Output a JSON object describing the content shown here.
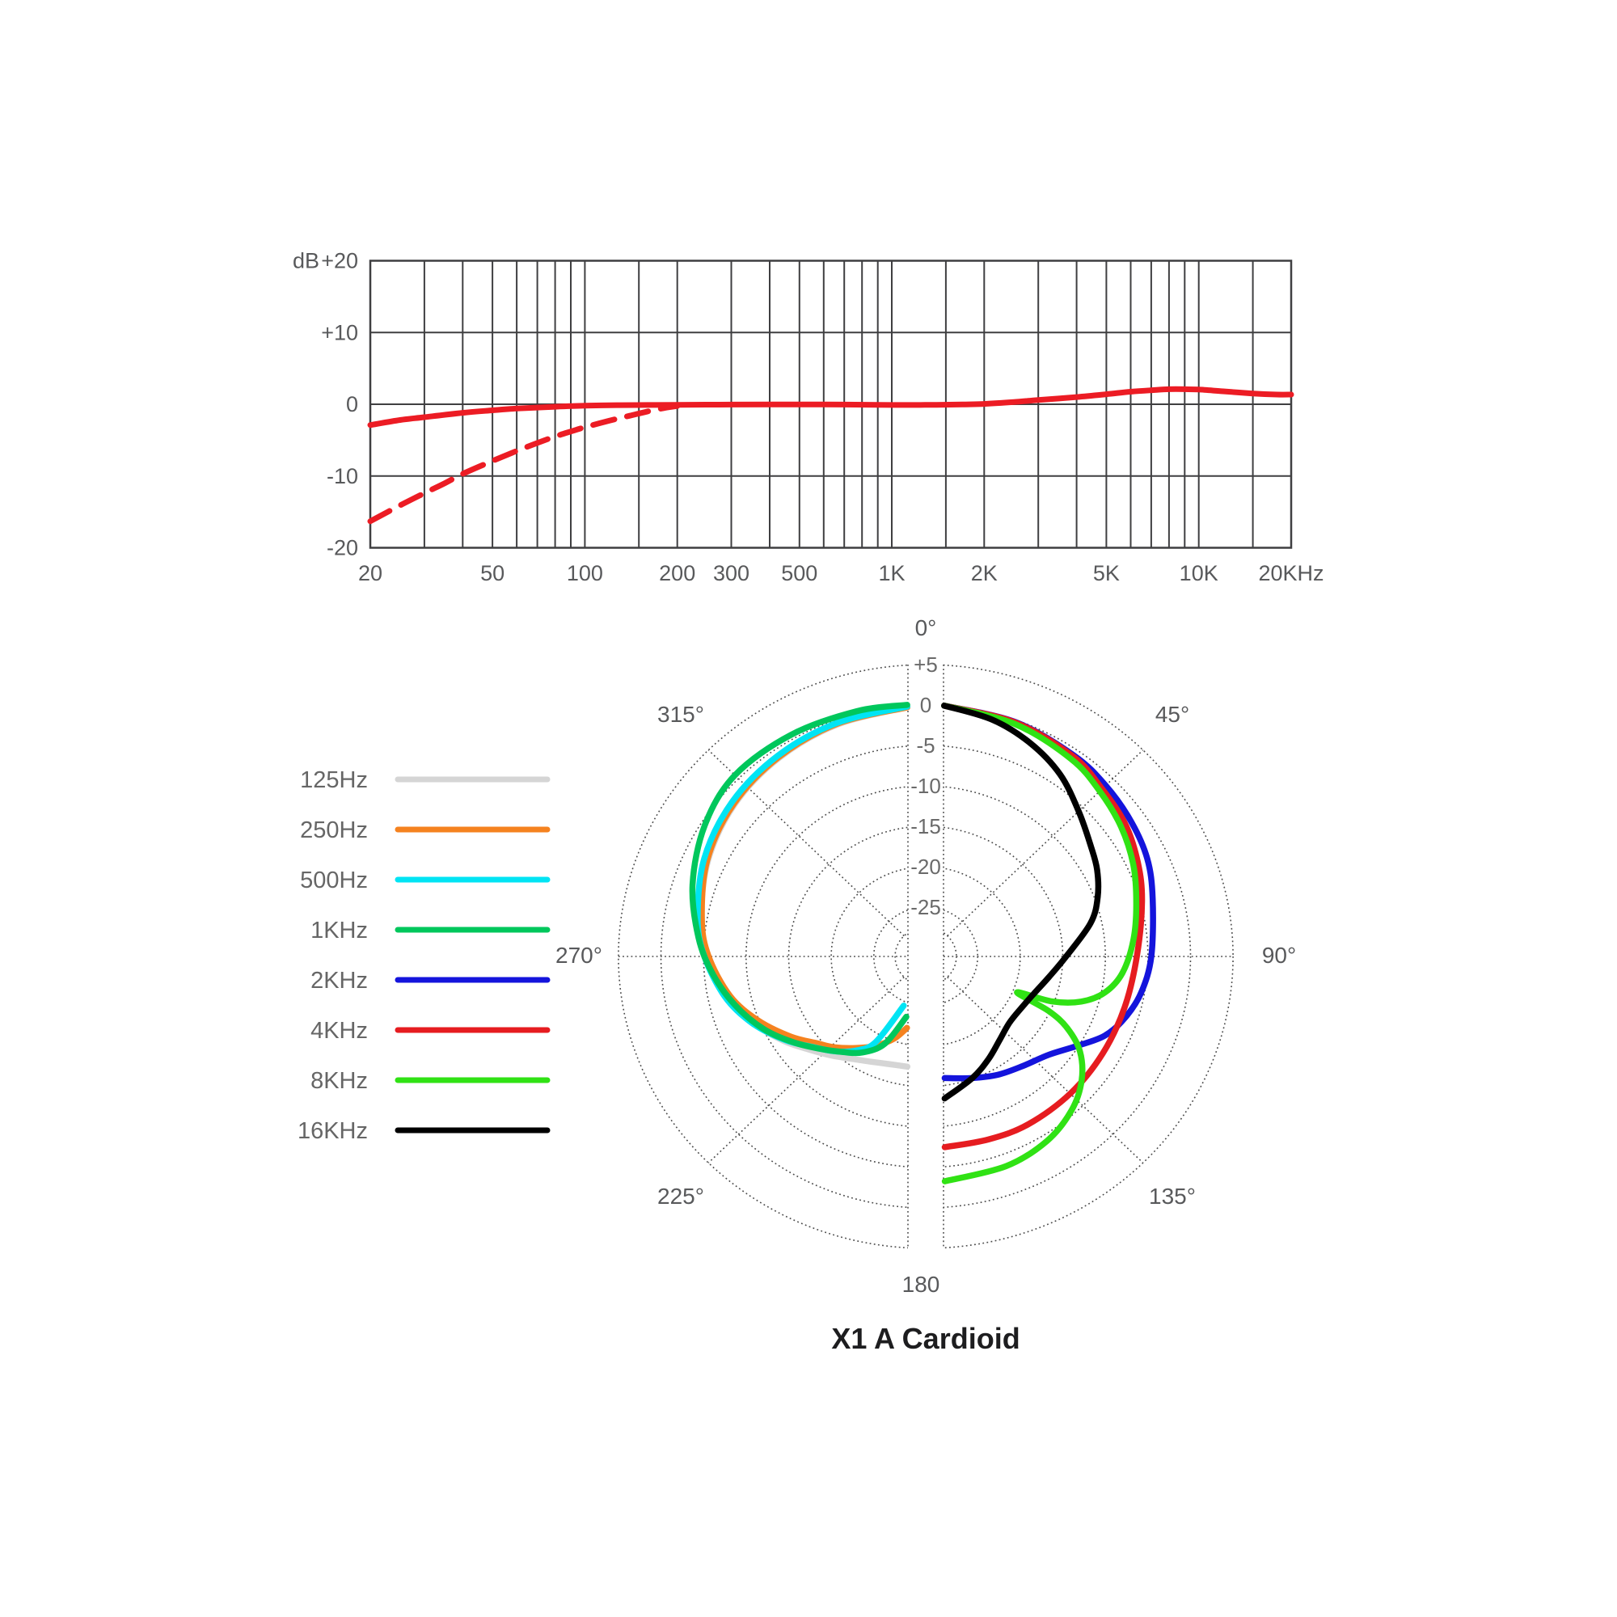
{
  "title": "X1 A Cardioid",
  "legend": {
    "items": [
      {
        "label": "125Hz",
        "color": "#d5d5d5"
      },
      {
        "label": "250Hz",
        "color": "#f5821f"
      },
      {
        "label": "500Hz",
        "color": "#00e4f4"
      },
      {
        "label": "1KHz",
        "color": "#00c75c"
      },
      {
        "label": "2KHz",
        "color": "#1414dc"
      },
      {
        "label": "4KHz",
        "color": "#e61c20"
      },
      {
        "label": "8KHz",
        "color": "#30e214"
      },
      {
        "label": "16KHz",
        "color": "#000000"
      }
    ]
  },
  "chart_data": [
    {
      "type": "line",
      "name": "frequency-response",
      "ylabel": "dB",
      "xlim": [
        20,
        20000
      ],
      "ylim": [
        -20,
        20
      ],
      "grid": "on",
      "y_ticks": [
        {
          "value": 20,
          "label": "+20"
        },
        {
          "value": 10,
          "label": "+10"
        },
        {
          "value": 0,
          "label": "0"
        },
        {
          "value": -10,
          "label": "-10"
        },
        {
          "value": -20,
          "label": "-20"
        }
      ],
      "x_minor_gridlines": [
        20,
        30,
        40,
        50,
        60,
        70,
        80,
        90,
        100,
        150,
        200,
        300,
        400,
        500,
        600,
        700,
        800,
        900,
        1000,
        1500,
        2000,
        3000,
        4000,
        5000,
        6000,
        7000,
        8000,
        9000,
        10000,
        15000,
        20000
      ],
      "x_ticks": [
        {
          "value": 20,
          "label": "20"
        },
        {
          "value": 50,
          "label": "50"
        },
        {
          "value": 100,
          "label": "100"
        },
        {
          "value": 200,
          "label": "200"
        },
        {
          "value": 300,
          "label": "300"
        },
        {
          "value": 500,
          "label": "500"
        },
        {
          "value": 1000,
          "label": "1K"
        },
        {
          "value": 2000,
          "label": "2K"
        },
        {
          "value": 5000,
          "label": "5K"
        },
        {
          "value": 10000,
          "label": "10K"
        },
        {
          "value": 20000,
          "label": "20KHz"
        }
      ],
      "series": [
        {
          "name": "on-axis-response",
          "style": "solid",
          "color": "#ec1c24",
          "points": [
            [
              20,
              -2.9
            ],
            [
              25,
              -2.2
            ],
            [
              30,
              -1.8
            ],
            [
              40,
              -1.2
            ],
            [
              50,
              -0.85
            ],
            [
              60,
              -0.6
            ],
            [
              80,
              -0.35
            ],
            [
              100,
              -0.2
            ],
            [
              130,
              -0.12
            ],
            [
              160,
              -0.1
            ],
            [
              200,
              -0.08
            ],
            [
              300,
              -0.05
            ],
            [
              400,
              -0.02
            ],
            [
              500,
              -0.02
            ],
            [
              700,
              -0.05
            ],
            [
              900,
              -0.08
            ],
            [
              1100,
              -0.1
            ],
            [
              1400,
              -0.08
            ],
            [
              1700,
              -0.02
            ],
            [
              2000,
              0.05
            ],
            [
              2500,
              0.3
            ],
            [
              3000,
              0.6
            ],
            [
              4000,
              1.0
            ],
            [
              5000,
              1.4
            ],
            [
              6000,
              1.75
            ],
            [
              7000,
              1.95
            ],
            [
              8000,
              2.1
            ],
            [
              9000,
              2.1
            ],
            [
              10000,
              2.05
            ],
            [
              12000,
              1.8
            ],
            [
              15000,
              1.5
            ],
            [
              18000,
              1.35
            ],
            [
              20000,
              1.35
            ]
          ]
        },
        {
          "name": "low-cut-response",
          "style": "dashed",
          "color": "#ec1c24",
          "points": [
            [
              20,
              -16.3
            ],
            [
              25,
              -14.1
            ],
            [
              30,
              -12.4
            ],
            [
              35,
              -11.0
            ],
            [
              40,
              -9.7
            ],
            [
              50,
              -7.9
            ],
            [
              60,
              -6.5
            ],
            [
              70,
              -5.4
            ],
            [
              80,
              -4.5
            ],
            [
              90,
              -3.8
            ],
            [
              100,
              -3.2
            ],
            [
              120,
              -2.3
            ],
            [
              140,
              -1.6
            ],
            [
              160,
              -1.0
            ],
            [
              180,
              -0.55
            ],
            [
              200,
              -0.25
            ]
          ]
        }
      ]
    },
    {
      "type": "polar",
      "name": "polar-pattern",
      "rings_db": [
        5,
        0,
        -5,
        -10,
        -15,
        -20,
        -25
      ],
      "ring_labels": [
        "+5",
        "0",
        "-5",
        "-10",
        "-15",
        "-20",
        "-25"
      ],
      "angle_labels": [
        {
          "deg": 0,
          "label": "0°"
        },
        {
          "deg": 45,
          "label": "45°"
        },
        {
          "deg": 90,
          "label": "90°"
        },
        {
          "deg": 135,
          "label": "135°"
        },
        {
          "deg": 180,
          "label": "180"
        },
        {
          "deg": 225,
          "label": "225°"
        },
        {
          "deg": 270,
          "label": "270°"
        },
        {
          "deg": 315,
          "label": "315°"
        }
      ],
      "series": [
        {
          "name": "125Hz",
          "color": "#d5d5d5",
          "half": "left",
          "points": [
            [
              356,
              -0.2
            ],
            [
              340,
              -0.6
            ],
            [
              325,
              -1.1
            ],
            [
              310,
              -1.8
            ],
            [
              295,
              -2.9
            ],
            [
              280,
              -4.3
            ],
            [
              270,
              -5.4
            ],
            [
              258,
              -7.2
            ],
            [
              248,
              -9.2
            ],
            [
              238,
              -11.4
            ],
            [
              230,
              -13.2
            ],
            [
              222,
              -14.6
            ],
            [
              214,
              -15.8
            ],
            [
              206,
              -16.6
            ],
            [
              198,
              -17.1
            ],
            [
              189,
              -17.3
            ]
          ]
        },
        {
          "name": "250Hz",
          "color": "#f5821f",
          "half": "left",
          "points": [
            [
              356,
              -0.2
            ],
            [
              340,
              -0.5
            ],
            [
              325,
              -1.0
            ],
            [
              310,
              -1.7
            ],
            [
              295,
              -2.8
            ],
            [
              280,
              -4.4
            ],
            [
              270,
              -5.6
            ],
            [
              258,
              -7.6
            ],
            [
              248,
              -9.9
            ],
            [
              238,
              -12.4
            ],
            [
              230,
              -14.4
            ],
            [
              224,
              -15.5
            ],
            [
              216,
              -17.1
            ],
            [
              208,
              -18.6
            ],
            [
              200,
              -20.3
            ],
            [
              194,
              -22.0
            ]
          ]
        },
        {
          "name": "500Hz",
          "color": "#00e4f4",
          "half": "left",
          "points": [
            [
              356,
              -0.1
            ],
            [
              340,
              -0.4
            ],
            [
              325,
              -0.8
            ],
            [
              310,
              -1.4
            ],
            [
              295,
              -2.4
            ],
            [
              280,
              -3.9
            ],
            [
              270,
              -5.1
            ],
            [
              258,
              -7.0
            ],
            [
              248,
              -9.1
            ],
            [
              238,
              -11.6
            ],
            [
              230,
              -13.7
            ],
            [
              222,
              -15.3
            ],
            [
              215,
              -16.9
            ],
            [
              209,
              -19.0
            ],
            [
              203,
              -24.5
            ]
          ]
        },
        {
          "name": "1KHz",
          "color": "#00c75c",
          "half": "left",
          "points": [
            [
              356,
              0.1
            ],
            [
              345,
              0.3
            ],
            [
              330,
              0.55
            ],
            [
              315,
              0.6
            ],
            [
              302,
              -0.5
            ],
            [
              288,
              -2.3
            ],
            [
              275,
              -4.3
            ],
            [
              265,
              -6.0
            ],
            [
              255,
              -7.9
            ],
            [
              245,
              -10.0
            ],
            [
              236,
              -12.2
            ],
            [
              228,
              -14.1
            ],
            [
              220,
              -15.7
            ],
            [
              212,
              -17.1
            ],
            [
              204,
              -19.3
            ],
            [
              197,
              -23.3
            ]
          ]
        },
        {
          "name": "2KHz",
          "color": "#1414dc",
          "half": "right",
          "points": [
            [
              4,
              0
            ],
            [
              20,
              -0.25
            ],
            [
              35,
              -0.75
            ],
            [
              45,
              -1.2
            ],
            [
              55,
              -1.75
            ],
            [
              65,
              -2.4
            ],
            [
              75,
              -3.5
            ],
            [
              90,
              -4.6
            ],
            [
              100,
              -5.4
            ],
            [
              108,
              -6.5
            ],
            [
              115,
              -7.9
            ],
            [
              122,
              -10.2
            ],
            [
              130,
              -12.2
            ],
            [
              140,
              -13.4
            ],
            [
              150,
              -14.2
            ],
            [
              160,
              -15.1
            ],
            [
              171.6,
              -15.9
            ]
          ]
        },
        {
          "name": "4KHz",
          "color": "#e61c20",
          "half": "right",
          "points": [
            [
              4,
              0
            ],
            [
              20,
              -0.3
            ],
            [
              35,
              -0.9
            ],
            [
              45,
              -1.8
            ],
            [
              55,
              -2.5
            ],
            [
              65,
              -3.6
            ],
            [
              75,
              -4.8
            ],
            [
              90,
              -6.3
            ],
            [
              105,
              -6.9
            ],
            [
              120,
              -7.1
            ],
            [
              135,
              -7.1
            ],
            [
              150,
              -7.1
            ],
            [
              162,
              -7.3
            ],
            [
              174.6,
              -7.4
            ]
          ]
        },
        {
          "name": "8KHz",
          "color": "#30e214",
          "half": "right",
          "points": [
            [
              4,
              0
            ],
            [
              20,
              -0.5
            ],
            [
              35,
              -1.3
            ],
            [
              45,
              -2.2
            ],
            [
              55,
              -3.1
            ],
            [
              65,
              -4.2
            ],
            [
              75,
              -5.5
            ],
            [
              85,
              -6.6
            ],
            [
              95,
              -7.9
            ],
            [
              102,
              -9.6
            ],
            [
              107,
              -12.0
            ],
            [
              110.5,
              -15.2
            ],
            [
              112.5,
              -19.5
            ],
            [
              115,
              -15.2
            ],
            [
              118,
              -12.3
            ],
            [
              123,
              -9.5
            ],
            [
              130,
              -7.2
            ],
            [
              138,
              -5.5
            ],
            [
              148,
              -4.2
            ],
            [
              160,
              -3.5
            ],
            [
              175.4,
              -3.2
            ]
          ]
        },
        {
          "name": "16KHz",
          "color": "#000000",
          "half": "right",
          "points": [
            [
              4,
              0
            ],
            [
              15,
              -0.8
            ],
            [
              25,
              -2.0
            ],
            [
              35,
              -3.6
            ],
            [
              45,
              -5.7
            ],
            [
              55,
              -7.4
            ],
            [
              62,
              -8.3
            ],
            [
              70,
              -9.6
            ],
            [
              78,
              -11.3
            ],
            [
              90,
              -14.6
            ],
            [
              100,
              -16.4
            ],
            [
              110,
              -17.6
            ],
            [
              120,
              -18.2
            ],
            [
              130,
              -18.3
            ],
            [
              140,
              -17.6
            ],
            [
              150,
              -16.4
            ],
            [
              160,
              -15.1
            ],
            [
              172.8,
              -13.4
            ]
          ]
        }
      ]
    }
  ]
}
